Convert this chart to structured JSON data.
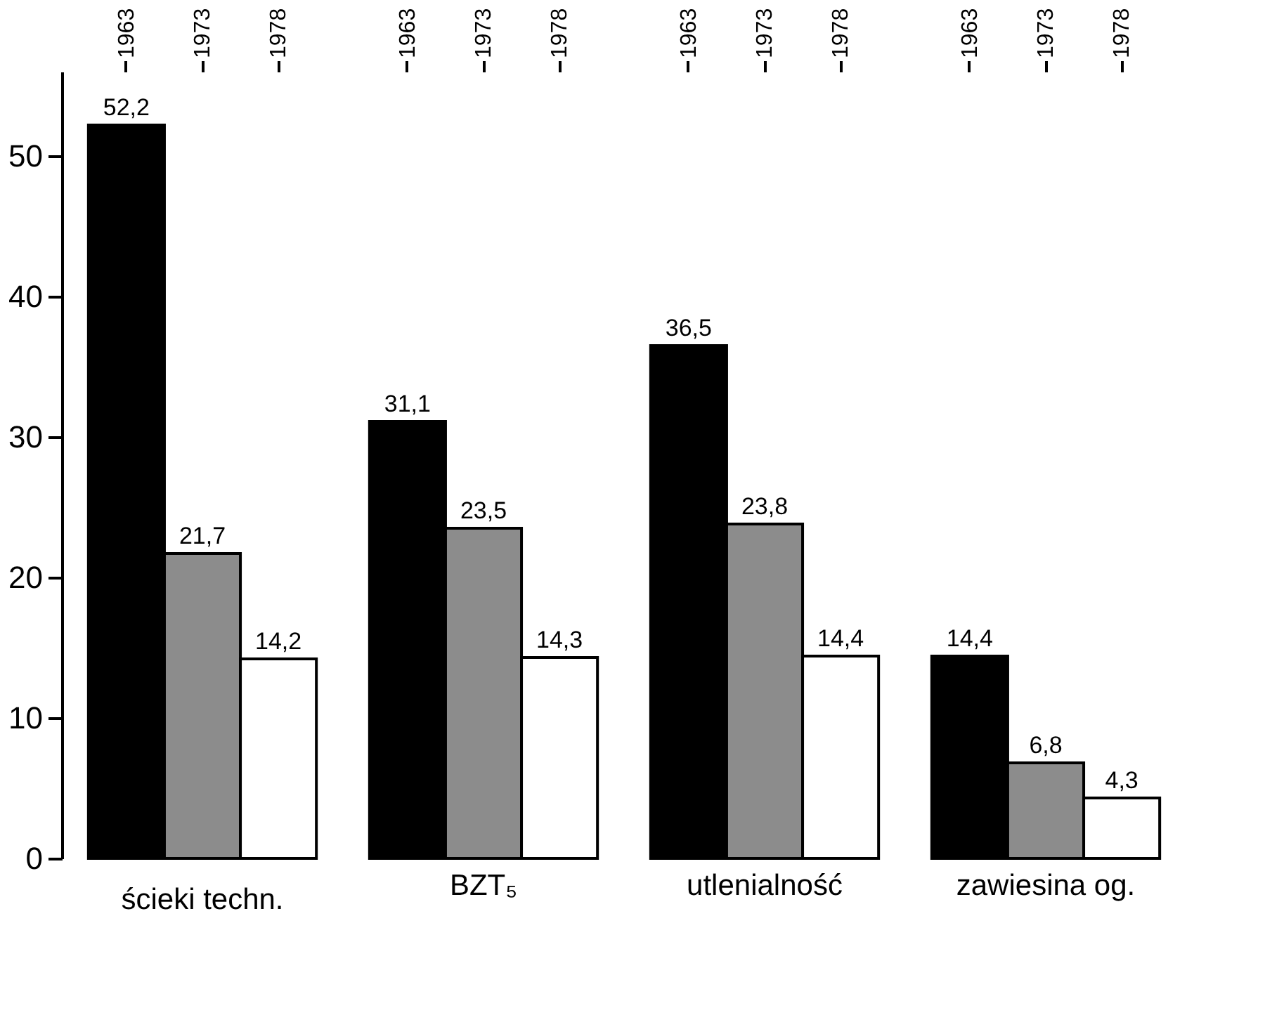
{
  "chart_data": {
    "type": "bar",
    "categories": [
      "ścieki techn.",
      "BZT₅",
      "utlenialność",
      "zawiesina og."
    ],
    "series": [
      {
        "name": "1963",
        "color": "#000000",
        "values": [
          52.2,
          31.1,
          36.5,
          14.4
        ],
        "value_labels": [
          "52,2",
          "31,1",
          "36,5",
          "14,4"
        ]
      },
      {
        "name": "1973",
        "color": "#8c8c8c",
        "values": [
          21.7,
          23.5,
          23.8,
          6.8
        ],
        "value_labels": [
          "21,7",
          "23,5",
          "23,8",
          "6,8"
        ]
      },
      {
        "name": "1978",
        "color": "#ffffff",
        "values": [
          14.2,
          14.3,
          14.4,
          4.3
        ],
        "value_labels": [
          "14,2",
          "14,3",
          "14,4",
          "4,3"
        ]
      }
    ],
    "ylim": [
      0,
      56
    ],
    "yticks": [
      0,
      10,
      20,
      30,
      40,
      50
    ],
    "grid": false,
    "legend": false
  }
}
